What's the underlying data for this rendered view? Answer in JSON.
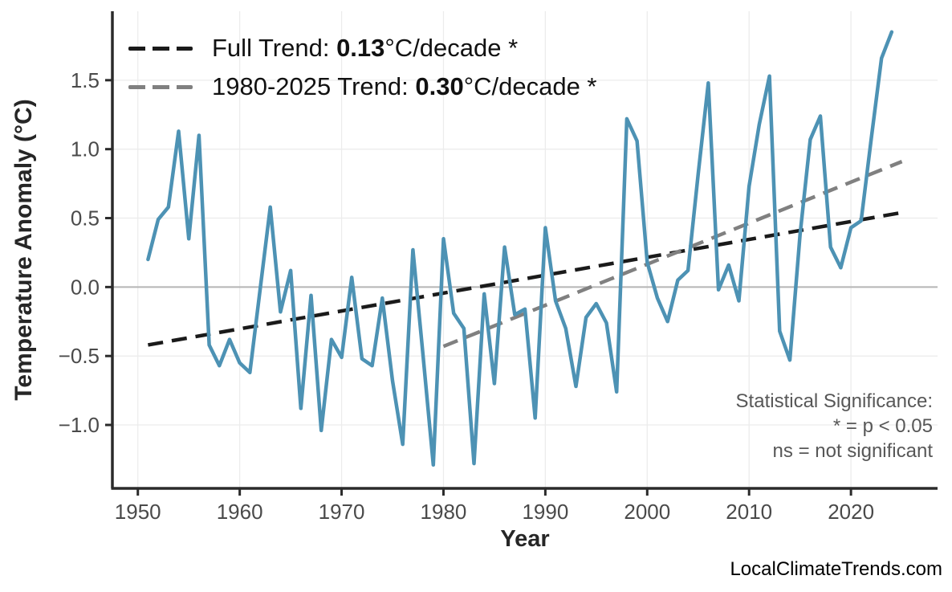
{
  "chart_data": {
    "type": "line",
    "title": "",
    "xlabel": "Year",
    "ylabel": "Temperature Anomaly (°C)",
    "xlim": [
      1947.5,
      2028.5
    ],
    "ylim": [
      -1.46,
      2.0
    ],
    "grid": true,
    "zero_line": true,
    "x_ticks": [
      {
        "value": 1950,
        "label": "1950"
      },
      {
        "value": 1960,
        "label": "1960"
      },
      {
        "value": 1970,
        "label": "1970"
      },
      {
        "value": 1980,
        "label": "1980"
      },
      {
        "value": 1990,
        "label": "1990"
      },
      {
        "value": 2000,
        "label": "2000"
      },
      {
        "value": 2010,
        "label": "2010"
      },
      {
        "value": 2020,
        "label": "2020"
      }
    ],
    "y_ticks": [
      {
        "value": 1.5,
        "label": "1.5"
      },
      {
        "value": 1.0,
        "label": "1.0"
      },
      {
        "value": 0.5,
        "label": "0.5"
      },
      {
        "value": 0.0,
        "label": "0.0"
      },
      {
        "value": -0.5,
        "label": "−0.5"
      },
      {
        "value": -1.0,
        "label": "−1.0"
      }
    ],
    "x": [
      1951,
      1952,
      1953,
      1954,
      1955,
      1956,
      1957,
      1958,
      1959,
      1960,
      1961,
      1962,
      1963,
      1964,
      1965,
      1966,
      1967,
      1968,
      1969,
      1970,
      1971,
      1972,
      1973,
      1974,
      1975,
      1976,
      1977,
      1978,
      1979,
      1980,
      1981,
      1982,
      1983,
      1984,
      1985,
      1986,
      1987,
      1988,
      1989,
      1990,
      1991,
      1992,
      1993,
      1994,
      1995,
      1996,
      1997,
      1998,
      1999,
      2000,
      2001,
      2002,
      2003,
      2004,
      2005,
      2006,
      2007,
      2008,
      2009,
      2010,
      2011,
      2012,
      2013,
      2014,
      2015,
      2016,
      2017,
      2018,
      2019,
      2020,
      2021,
      2022,
      2023,
      2024
    ],
    "series": [
      {
        "name": "annual-temperature-anomaly",
        "color": "#4d92b4",
        "values": [
          0.2,
          0.49,
          0.58,
          1.13,
          0.35,
          1.1,
          -0.42,
          -0.57,
          -0.38,
          -0.55,
          -0.62,
          -0.02,
          0.58,
          -0.18,
          0.12,
          -0.88,
          -0.06,
          -1.04,
          -0.38,
          -0.51,
          0.07,
          -0.52,
          -0.57,
          -0.08,
          -0.68,
          -1.14,
          0.27,
          -0.5,
          -1.29,
          0.35,
          -0.19,
          -0.3,
          -1.28,
          -0.05,
          -0.7,
          0.29,
          -0.2,
          -0.16,
          -0.95,
          0.43,
          -0.1,
          -0.3,
          -0.72,
          -0.22,
          -0.12,
          -0.26,
          -0.76,
          1.22,
          1.06,
          0.18,
          -0.08,
          -0.25,
          0.05,
          0.12,
          0.82,
          1.48,
          -0.02,
          0.16,
          -0.1,
          0.73,
          1.18,
          1.53,
          -0.32,
          -0.53,
          0.38,
          1.07,
          1.24,
          0.29,
          0.14,
          0.43,
          0.48,
          1.08,
          1.66,
          1.85
        ]
      }
    ],
    "trend_lines": [
      {
        "name": "full-trend",
        "color": "#1a1a1a",
        "x": [
          1951,
          2025
        ],
        "y": [
          -0.42,
          0.54
        ],
        "slope_per_decade": "0.13"
      },
      {
        "name": "1980-2025-trend",
        "color": "#808080",
        "x": [
          1980,
          2025
        ],
        "y": [
          -0.43,
          0.91
        ],
        "slope_per_decade": "0.30"
      }
    ],
    "legend_position": "upper-left"
  },
  "legend": {
    "rows": [
      {
        "prefix": "Full Trend: ",
        "value": "0.13",
        "suffix": "°C/decade *",
        "color": "#1a1a1a"
      },
      {
        "prefix": "1980-2025 Trend: ",
        "value": "0.30",
        "suffix": "°C/decade *",
        "color": "#808080"
      }
    ]
  },
  "annotation": {
    "line1": "Statistical Significance:",
    "line2": "* = p < 0.05",
    "line3": "ns = not significant"
  },
  "axes": {
    "x_label": "Year",
    "y_label": "Temperature Anomaly (°C)"
  },
  "footer": {
    "text": "LocalClimateTrends.com"
  },
  "colors": {
    "series_blue": "#4d92b4",
    "trend_black": "#1a1a1a",
    "trend_gray": "#808080",
    "grid": "#ececec",
    "zero_line": "#b5b5b5",
    "spine": "#2b2b2b",
    "tick_label": "#4a4a4a"
  }
}
